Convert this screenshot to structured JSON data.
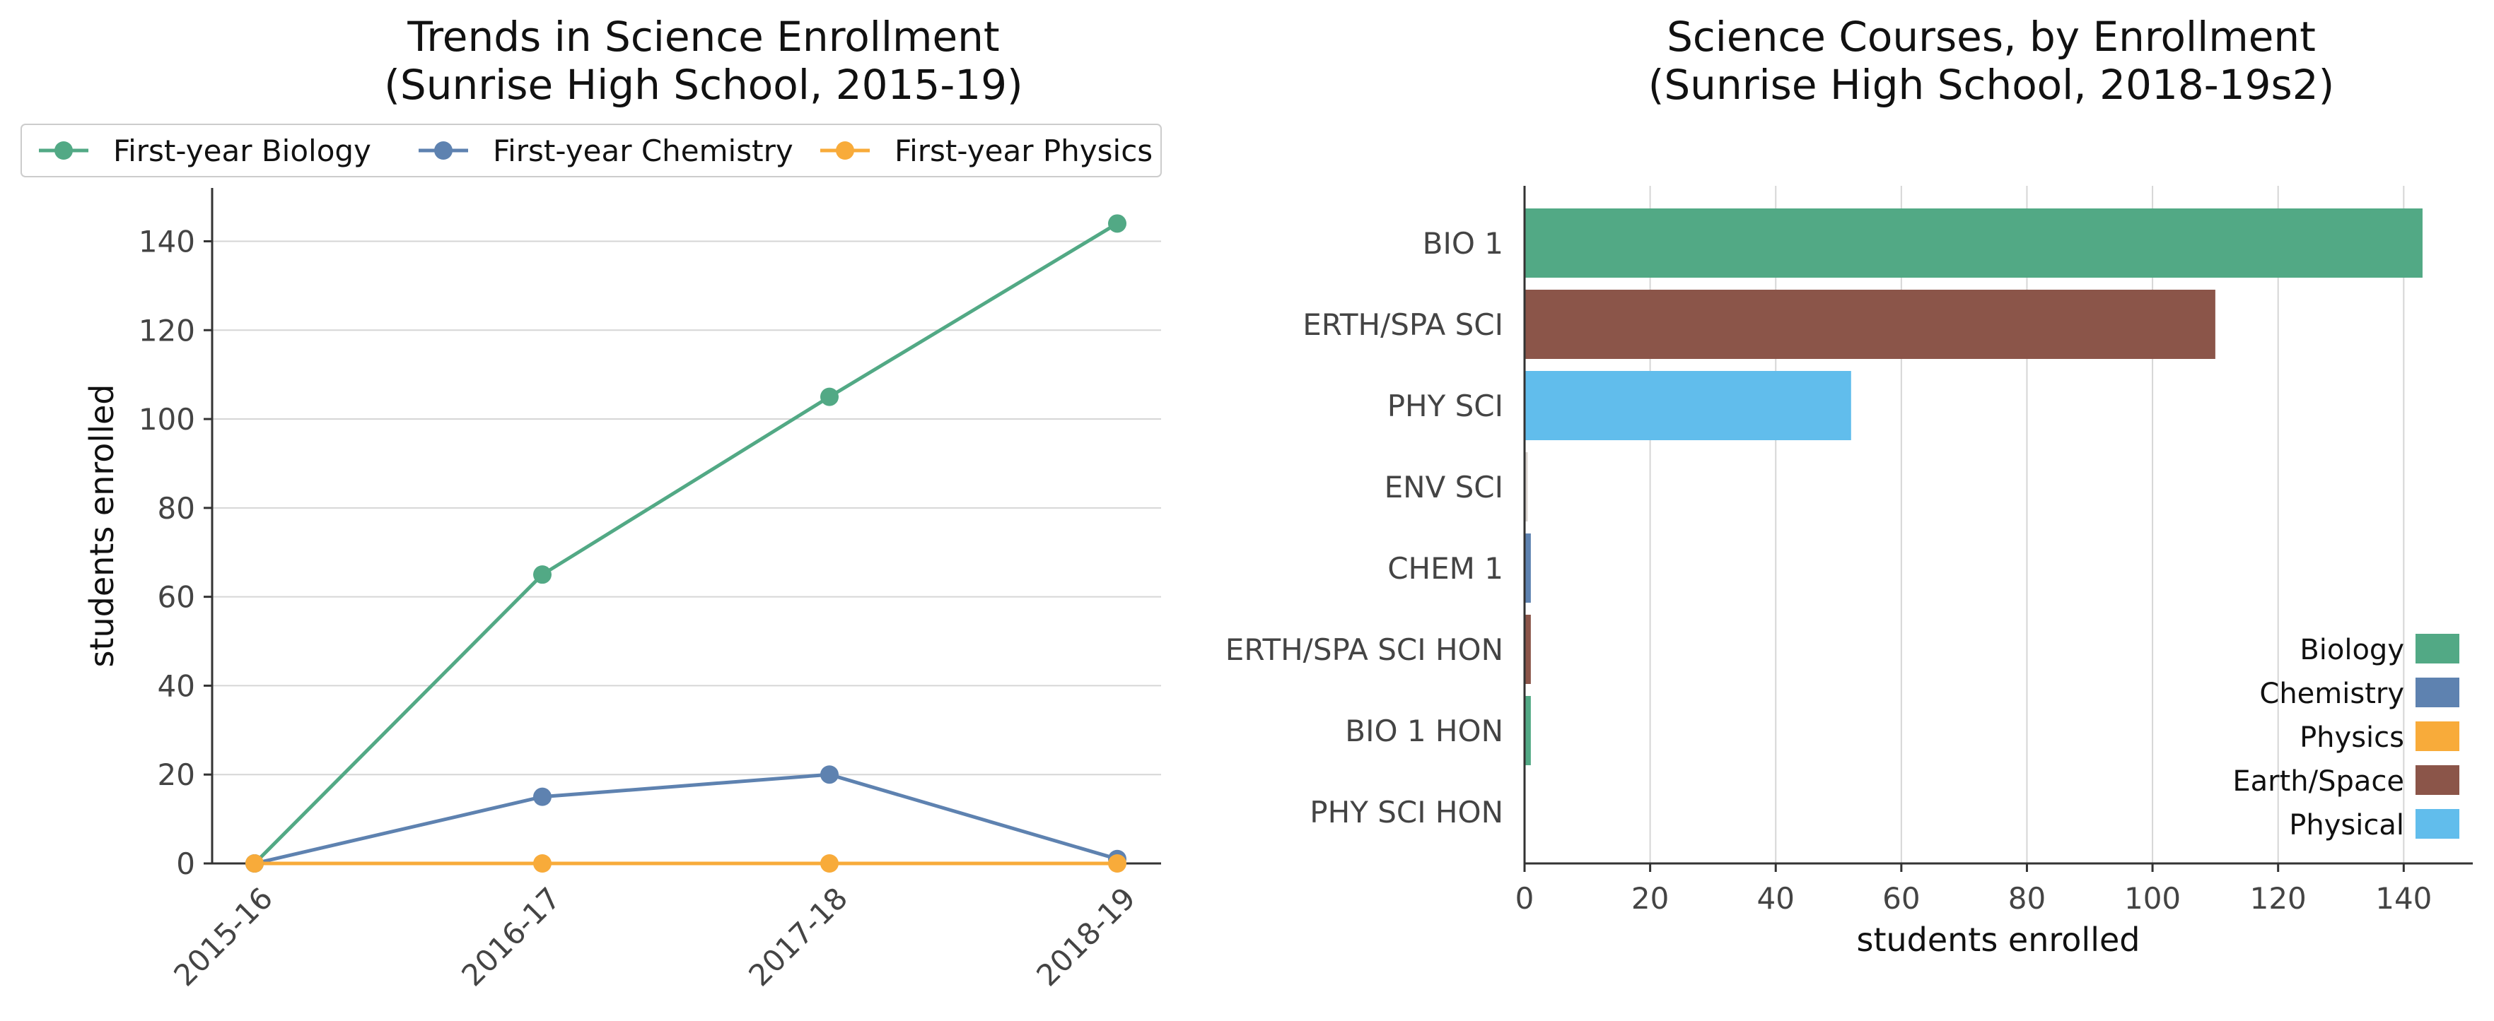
{
  "chart_data": [
    {
      "type": "line",
      "title": "Trends in Science Enrollment\n(Sunrise High School, 2015-19)",
      "xlabel": "",
      "ylabel": "students enrolled",
      "categories": [
        "2015-16",
        "2016-17",
        "2017-18",
        "2018-19"
      ],
      "ylim": [
        0,
        152
      ],
      "yticks": [
        0,
        20,
        40,
        60,
        80,
        100,
        120,
        140
      ],
      "grid": "horizontal",
      "legend_position": "top",
      "series": [
        {
          "name": "First-year Biology",
          "color": "#52a985",
          "values": [
            0,
            65,
            105,
            144
          ]
        },
        {
          "name": "First-year Chemistry",
          "color": "#5e82b0",
          "values": [
            0,
            15,
            20,
            1
          ]
        },
        {
          "name": "First-year Physics",
          "color": "#f8ab3a",
          "values": [
            0,
            0,
            0,
            0
          ]
        }
      ]
    },
    {
      "type": "bar",
      "orientation": "horizontal",
      "title": "Science Courses, by Enrollment\n(Sunrise High School, 2018-19s2)",
      "xlabel": "students enrolled",
      "ylabel": "",
      "xlim": [
        0,
        151
      ],
      "xticks": [
        0,
        20,
        40,
        60,
        80,
        100,
        120,
        140
      ],
      "grid": "vertical",
      "legend_position": "lower-right",
      "categories": [
        "BIO 1",
        "ERTH/SPA SCI",
        "PHY SCI",
        "ENV SCI",
        "CHEM 1",
        "ERTH/SPA SCI HON",
        "BIO 1 HON",
        "PHY SCI HON"
      ],
      "values": [
        143,
        110,
        52,
        0.5,
        1,
        1,
        1,
        0
      ],
      "bar_colors": [
        "#52a985",
        "#8b5549",
        "#61bdec",
        "#d9d3cf",
        "#5e82b0",
        "#8b5549",
        "#52a985",
        "#f8ab3a"
      ],
      "legend": [
        {
          "label": "Biology",
          "color": "#52a985"
        },
        {
          "label": "Chemistry",
          "color": "#5e82b0"
        },
        {
          "label": "Physics",
          "color": "#f8ab3a"
        },
        {
          "label": "Earth/Space",
          "color": "#8b5549"
        },
        {
          "label": "Physical",
          "color": "#61bdec"
        }
      ]
    }
  ]
}
